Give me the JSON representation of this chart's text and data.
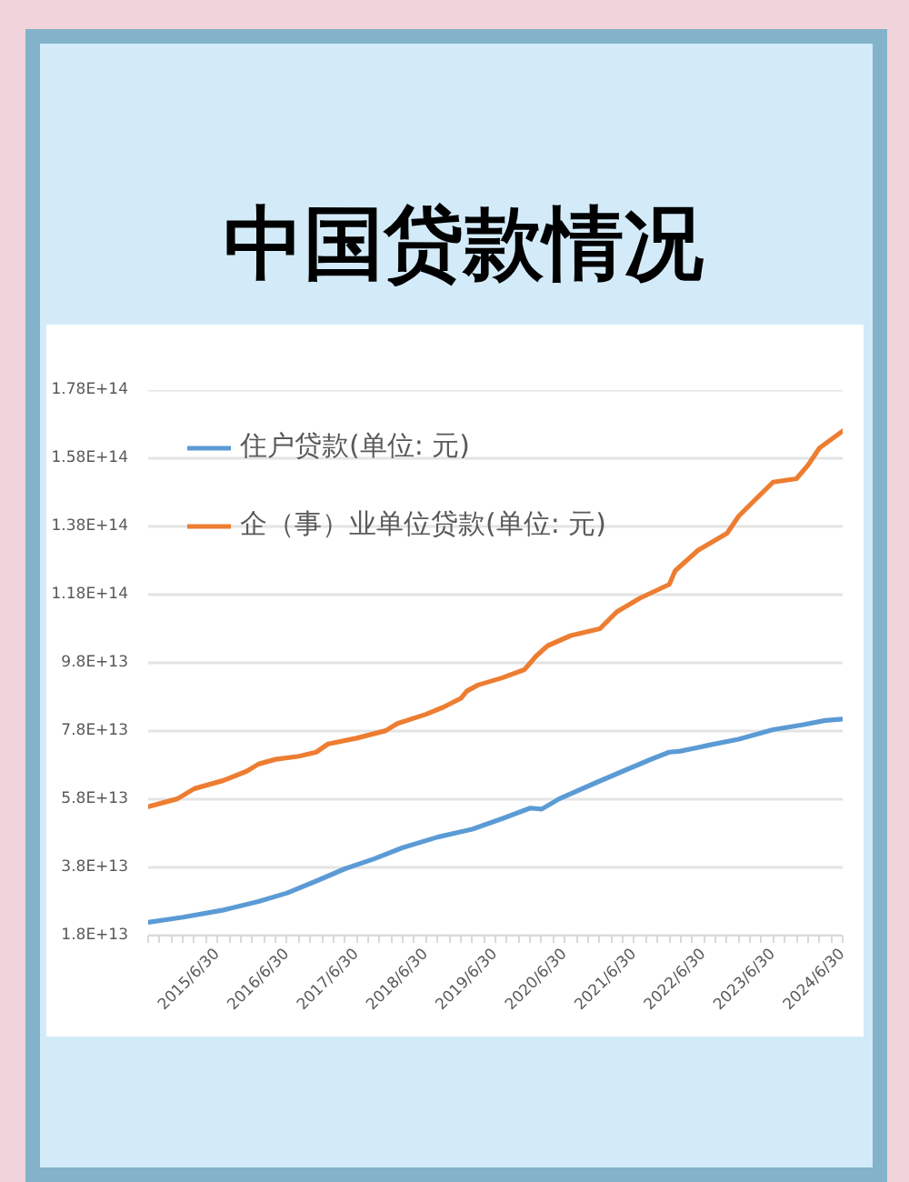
{
  "chart_data": {
    "type": "line",
    "title": "中国贷款情况",
    "series": [
      {
        "name": "住户贷款(单位: 元)",
        "color": "#5b9bd5",
        "x": [
          "2014-06-30",
          "2014-12-31",
          "2015-07-31",
          "2016-01-31",
          "2016-06-30",
          "2016-11-30",
          "2017-04-30",
          "2017-09-30",
          "2018-02-28",
          "2018-08-31",
          "2019-02-28",
          "2019-07-31",
          "2019-12-31",
          "2020-02-29",
          "2020-05-31",
          "2020-11-30",
          "2021-04-30",
          "2021-09-30",
          "2021-12-31",
          "2022-02-28",
          "2022-07-31",
          "2022-12-31",
          "2023-06-30",
          "2023-11-30",
          "2024-03-31",
          "2024-06-30"
        ],
        "values": [
          21900000000000.0,
          23400000000000.0,
          25500000000000.0,
          28000000000000.0,
          30500000000000.0,
          34000000000000.0,
          37600000000000.0,
          40500000000000.0,
          43800000000000.0,
          46900000000000.0,
          49200000000000.0,
          52200000000000.0,
          55400000000000.0,
          55100000000000.0,
          58100000000000.0,
          62600000000000.0,
          66200000000000.0,
          69800000000000.0,
          71800000000000.0,
          72100000000000.0,
          73900000000000.0,
          75600000000000.0,
          78400000000000.0,
          79800000000000.0,
          81100000000000.0,
          81500000000000.0
        ]
      },
      {
        "name": "企（事）业单位贷款(单位: 元)",
        "color": "#ed7d31",
        "x": [
          "2014-06-30",
          "2014-11-30",
          "2015-02-28",
          "2015-07-31",
          "2015-11-30",
          "2016-01-31",
          "2016-04-30",
          "2016-08-31",
          "2016-11-30",
          "2017-01-31",
          "2017-06-30",
          "2017-11-30",
          "2018-01-31",
          "2018-06-30",
          "2018-09-30",
          "2018-12-31",
          "2019-01-31",
          "2019-03-31",
          "2019-07-31",
          "2019-11-30",
          "2020-01-31",
          "2020-03-31",
          "2020-07-31",
          "2020-12-31",
          "2021-03-31",
          "2021-07-31",
          "2021-12-31",
          "2022-01-31",
          "2022-05-31",
          "2022-10-31",
          "2022-12-31",
          "2023-03-31",
          "2023-06-30",
          "2023-10-31",
          "2023-12-31",
          "2024-02-29",
          "2024-06-30"
        ],
        "values": [
          55800000000000.0,
          58100000000000.0,
          61100000000000.0,
          63500000000000.0,
          66200000000000.0,
          68300000000000.0,
          69700000000000.0,
          70600000000000.0,
          71800000000000.0,
          74200000000000.0,
          75900000000000.0,
          78100000000000.0,
          80200000000000.0,
          82900000000000.0,
          85000000000000.0,
          87600000000000.0,
          89700000000000.0,
          91500000000000.0,
          93500000000000.0,
          96000000000000.0,
          100000000000000.0,
          103000000000000.0,
          106000000000000.0,
          108000000000000.0,
          113000000000000.0,
          117000000000000.0,
          121000000000000.0,
          125000000000000.0,
          131000000000000.0,
          136000000000000.0,
          141000000000000.0,
          146000000000000.0,
          151000000000000.0,
          152000000000000.0,
          156000000000000.0,
          161000000000000.0,
          166000000000000.0
        ]
      }
    ],
    "xlim": [
      "2014-06-30",
      "2024-06-30"
    ],
    "xticks": [
      {
        "value": "2014-06-30",
        "label": null
      },
      {
        "value": "2014-08-31",
        "label": null
      },
      {
        "value": "2014-10-31",
        "label": null
      },
      {
        "value": "2014-12-31",
        "label": null
      },
      {
        "value": "2015-02-28",
        "label": null
      },
      {
        "value": "2015-04-30",
        "label": null
      },
      {
        "value": "2015-06-30",
        "label": "2015/6/30"
      },
      {
        "value": "2015-08-31",
        "label": null
      },
      {
        "value": "2015-10-31",
        "label": null
      },
      {
        "value": "2015-12-31",
        "label": null
      },
      {
        "value": "2016-02-29",
        "label": null
      },
      {
        "value": "2016-04-30",
        "label": null
      },
      {
        "value": "2016-06-30",
        "label": "2016/6/30"
      },
      {
        "value": "2016-08-31",
        "label": null
      },
      {
        "value": "2016-10-31",
        "label": null
      },
      {
        "value": "2016-12-31",
        "label": null
      },
      {
        "value": "2017-02-28",
        "label": null
      },
      {
        "value": "2017-04-30",
        "label": null
      },
      {
        "value": "2017-06-30",
        "label": "2017/6/30"
      },
      {
        "value": "2017-08-31",
        "label": null
      },
      {
        "value": "2017-10-31",
        "label": null
      },
      {
        "value": "2017-12-31",
        "label": null
      },
      {
        "value": "2018-02-28",
        "label": null
      },
      {
        "value": "2018-04-30",
        "label": null
      },
      {
        "value": "2018-06-30",
        "label": "2018/6/30"
      },
      {
        "value": "2018-08-31",
        "label": null
      },
      {
        "value": "2018-10-31",
        "label": null
      },
      {
        "value": "2018-12-31",
        "label": null
      },
      {
        "value": "2019-02-28",
        "label": null
      },
      {
        "value": "2019-04-30",
        "label": null
      },
      {
        "value": "2019-06-30",
        "label": "2019/6/30"
      },
      {
        "value": "2019-08-31",
        "label": null
      },
      {
        "value": "2019-10-31",
        "label": null
      },
      {
        "value": "2019-12-31",
        "label": null
      },
      {
        "value": "2020-02-29",
        "label": null
      },
      {
        "value": "2020-04-30",
        "label": null
      },
      {
        "value": "2020-06-30",
        "label": "2020/6/30"
      },
      {
        "value": "2020-08-31",
        "label": null
      },
      {
        "value": "2020-10-31",
        "label": null
      },
      {
        "value": "2020-12-31",
        "label": null
      },
      {
        "value": "2021-02-28",
        "label": null
      },
      {
        "value": "2021-04-30",
        "label": null
      },
      {
        "value": "2021-06-30",
        "label": "2021/6/30"
      },
      {
        "value": "2021-08-31",
        "label": null
      },
      {
        "value": "2021-10-31",
        "label": null
      },
      {
        "value": "2021-12-31",
        "label": null
      },
      {
        "value": "2022-02-28",
        "label": null
      },
      {
        "value": "2022-04-30",
        "label": null
      },
      {
        "value": "2022-06-30",
        "label": "2022/6/30"
      },
      {
        "value": "2022-08-31",
        "label": null
      },
      {
        "value": "2022-10-31",
        "label": null
      },
      {
        "value": "2022-12-31",
        "label": null
      },
      {
        "value": "2023-02-28",
        "label": null
      },
      {
        "value": "2023-04-30",
        "label": null
      },
      {
        "value": "2023-06-30",
        "label": "2023/6/30"
      },
      {
        "value": "2023-08-31",
        "label": null
      },
      {
        "value": "2023-10-31",
        "label": null
      },
      {
        "value": "2023-12-31",
        "label": null
      },
      {
        "value": "2024-02-29",
        "label": null
      },
      {
        "value": "2024-04-30",
        "label": null
      },
      {
        "value": "2024-06-30",
        "label": "2024/6/30"
      }
    ],
    "ylim": [
      18000000000000.0,
      178000000000000.0
    ],
    "yticks": [
      {
        "value": 18000000000000.0,
        "label": "1.8E+13"
      },
      {
        "value": 38000000000000.0,
        "label": "3.8E+13"
      },
      {
        "value": 58000000000000.0,
        "label": "5.8E+13"
      },
      {
        "value": 78000000000000.0,
        "label": "7.8E+13"
      },
      {
        "value": 98000000000000.0,
        "label": "9.8E+13"
      },
      {
        "value": 118000000000000.0,
        "label": "1.18E+14"
      },
      {
        "value": 138000000000000.0,
        "label": "1.38E+14"
      },
      {
        "value": 158000000000000.0,
        "label": "1.58E+14"
      },
      {
        "value": 178000000000000.0,
        "label": "1.78E+14"
      }
    ],
    "grid": "y",
    "legend": "top left"
  }
}
